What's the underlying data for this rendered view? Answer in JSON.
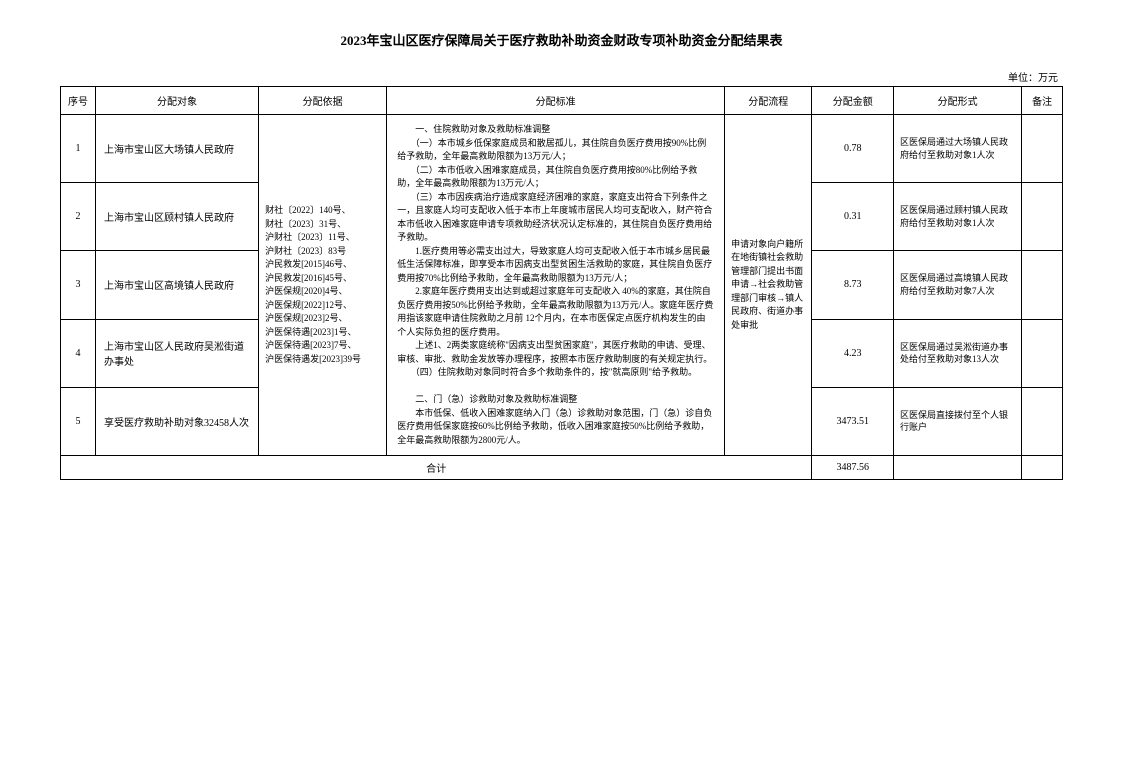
{
  "title": "2023年宝山区医疗保障局关于医疗救助补助资金财政专项补助资金分配结果表",
  "unit": "单位：万元",
  "headers": {
    "seq": "序号",
    "target": "分配对象",
    "basis": "分配依据",
    "standard": "分配标准",
    "process": "分配流程",
    "amount": "分配金额",
    "form": "分配形式",
    "remark": "备注"
  },
  "basis_text": "财社〔2022〕140号、\n财社〔2023〕31号、\n沪财社〔2023〕11号、\n沪财社〔2023〕83号\n沪民救发[2015]46号、\n沪民救发[2016]45号、\n沪医保规[2020]4号、\n沪医保规[2022]12号、\n沪医保规[2023]2号、\n沪医保待遇[2023]1号、\n沪医保待遇[2023]7号、\n沪医保待遇发[2023]39号",
  "standard_text": "　　一、住院救助对象及救助标准调整\n　　（一）本市城乡低保家庭成员和散居孤儿，其住院自负医疗费用按90%比例给予救助，全年最高救助限额为13万元/人；\n　　（二）本市低收入困难家庭成员，其住院自负医疗费用按80%比例给予救助，全年最高救助限额为13万元/人；\n　　（三）本市因疾病治疗造成家庭经济困难的家庭，家庭支出符合下列条件之一，且家庭人均可支配收入低于本市上年度城市居民人均可支配收入，财产符合本市低收入困难家庭申请专项救助经济状况认定标准的，其住院自负医疗费用给予救助。\n　　1.医疗费用等必需支出过大，导致家庭人均可支配收入低于本市城乡居民最低生活保障标准，即享受本市因病支出型贫困生活救助的家庭，其住院自负医疗费用按70%比例给予救助，全年最高救助限额为13万元/人；\n　　2.家庭年医疗费用支出达到或超过家庭年可支配收入 40%的家庭，其住院自负医疗费用按50%比例给予救助，全年最高救助限额为13万元/人。家庭年医疗费用指该家庭申请住院救助之月前 12个月内，在本市医保定点医疗机构发生的由个人实际负担的医疗费用。\n　　上述1、2两类家庭统称\"因病支出型贫困家庭\"，其医疗救助的申请、受理、审核、审批、救助金发放等办理程序，按照本市医疗救助制度的有关规定执行。\n　　（四）住院救助对象同时符合多个救助条件的，按\"就高原则\"给予救助。\n\n　　二、门（急）诊救助对象及救助标准调整\n　　本市低保、低收入困难家庭纳入门（急）诊救助对象范围，门（急）诊自负医疗费用低保家庭按60%比例给予救助，低收入困难家庭按50%比例给予救助，全年最高救助限额为2800元/人。",
  "process_text": "申请对象向户籍所在地街镇社会救助管理部门提出书面申请→社会救助管理部门审核→镇人民政府、街道办事处审批",
  "rows": [
    {
      "seq": "1",
      "target": "上海市宝山区大场镇人民政府",
      "amount": "0.78",
      "form": "区医保局通过大场镇人民政府给付至救助对象1人次"
    },
    {
      "seq": "2",
      "target": "上海市宝山区顾村镇人民政府",
      "amount": "0.31",
      "form": "区医保局通过顾村镇人民政府给付至救助对象1人次"
    },
    {
      "seq": "3",
      "target": "上海市宝山区高境镇人民政府",
      "amount": "8.73",
      "form": "区医保局通过高境镇人民政府给付至救助对象7人次"
    },
    {
      "seq": "4",
      "target": "上海市宝山区人民政府吴淞街道办事处",
      "amount": "4.23",
      "form": "区医保局通过吴淞街道办事处给付至救助对象13人次"
    },
    {
      "seq": "5",
      "target": "享受医疗救助补助对象32458人次",
      "amount": "3473.51",
      "form": "区医保局直接拨付至个人银行账户"
    }
  ],
  "total": {
    "label": "合计",
    "amount": "3487.56"
  }
}
